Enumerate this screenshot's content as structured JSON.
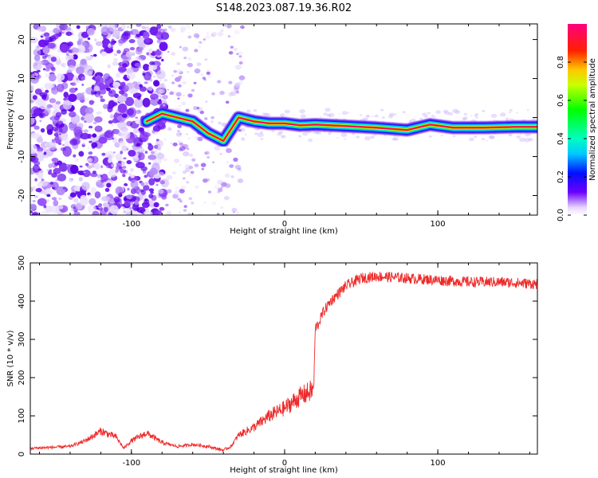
{
  "title": "S148.2023.087.19.36.R02",
  "chart_data": [
    {
      "type": "heatmap",
      "xlabel": "Height of straight line (km)",
      "ylabel": "Frequency (Hz)",
      "xlim": [
        -166,
        165
      ],
      "ylim": [
        -25,
        24
      ],
      "x_ticks": [
        -100,
        0,
        100
      ],
      "y_ticks": [
        -20,
        -10,
        0,
        10,
        20
      ],
      "colorbar": {
        "label": "Normalized spectral amplitude",
        "range": [
          0,
          1
        ],
        "ticks": [
          0.0,
          0.2,
          0.4,
          0.6,
          0.8
        ],
        "tick_labels": [
          "0.0",
          "0.2",
          "0.4",
          "0.6",
          "0.8"
        ]
      },
      "ridge": [
        {
          "x": -90,
          "y": -1
        },
        {
          "x": -80,
          "y": 1
        },
        {
          "x": -70,
          "y": 0
        },
        {
          "x": -60,
          "y": -1
        },
        {
          "x": -50,
          "y": -4
        },
        {
          "x": -40,
          "y": -6
        },
        {
          "x": -30,
          "y": 0
        },
        {
          "x": -20,
          "y": -1
        },
        {
          "x": -10,
          "y": -1.5
        },
        {
          "x": 0,
          "y": -1.5
        },
        {
          "x": 10,
          "y": -2
        },
        {
          "x": 20,
          "y": -1.8
        },
        {
          "x": 40,
          "y": -2.2
        },
        {
          "x": 60,
          "y": -2.6
        },
        {
          "x": 80,
          "y": -3.2
        },
        {
          "x": 95,
          "y": -1.8
        },
        {
          "x": 110,
          "y": -2.6
        },
        {
          "x": 130,
          "y": -2.6
        },
        {
          "x": 150,
          "y": -2.4
        },
        {
          "x": 165,
          "y": -2.4
        }
      ]
    },
    {
      "type": "line",
      "xlabel": "Height of straight line (km)",
      "ylabel": "SNR (10 * v/v)",
      "xlim": [
        -166,
        165
      ],
      "ylim": [
        0,
        500
      ],
      "x_ticks": [
        -100,
        0,
        100
      ],
      "y_ticks": [
        0,
        100,
        200,
        300,
        400,
        500
      ],
      "series": [
        {
          "color": "#ee2a2a",
          "x": [
            -166,
            -150,
            -140,
            -130,
            -120,
            -110,
            -105,
            -100,
            -90,
            -80,
            -70,
            -60,
            -50,
            -40,
            -35,
            -30,
            -20,
            -10,
            0,
            10,
            15,
            19,
            20,
            22,
            25,
            30,
            40,
            50,
            60,
            80,
            100,
            120,
            140,
            165
          ],
          "y": [
            15,
            18,
            20,
            35,
            60,
            45,
            15,
            35,
            55,
            30,
            20,
            25,
            20,
            10,
            20,
            50,
            70,
            100,
            120,
            150,
            160,
            170,
            330,
            340,
            370,
            400,
            440,
            460,
            465,
            460,
            455,
            450,
            450,
            445
          ]
        }
      ]
    }
  ]
}
